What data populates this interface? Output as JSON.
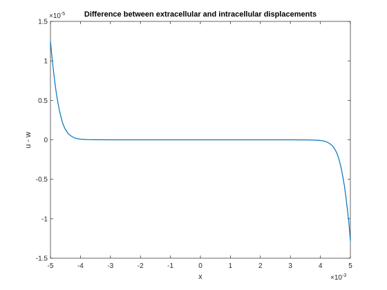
{
  "chart_data": {
    "type": "line",
    "title": "Difference between extracellular and intracellular displacements",
    "xlabel": "x",
    "ylabel": "u - w",
    "x_exponent_base": "×10",
    "x_exponent_power": "-3",
    "y_exponent_base": "×10",
    "y_exponent_power": "-5",
    "xlim": [
      -5,
      5
    ],
    "ylim": [
      -1.5,
      1.5
    ],
    "x_ticks": [
      -5,
      -4,
      -3,
      -2,
      -1,
      0,
      1,
      2,
      3,
      4,
      5
    ],
    "x_tick_labels": [
      "-5",
      "-4",
      "-3",
      "-2",
      "-1",
      "0",
      "1",
      "2",
      "3",
      "4",
      "5"
    ],
    "y_ticks": [
      -1.5,
      -1,
      -0.5,
      0,
      0.5,
      1,
      1.5
    ],
    "y_tick_labels": [
      "-1.5",
      "-1",
      "-0.5",
      "0",
      "0.5",
      "1",
      "1.5"
    ],
    "grid": false,
    "line_color": "#0072BD",
    "series": [
      {
        "x": [
          -5.0,
          -4.95,
          -4.9,
          -4.85,
          -4.8,
          -4.75,
          -4.7,
          -4.65,
          -4.6,
          -4.55,
          -4.5,
          -4.4,
          -4.3,
          -4.2,
          -4.1,
          -4.0,
          -3.8,
          -3.5,
          -3.0,
          -2.5,
          -2.0,
          -1.0,
          0.0,
          1.0,
          2.0,
          2.5,
          3.0,
          3.5,
          3.8,
          4.0,
          4.1,
          4.2,
          4.3,
          4.4,
          4.5,
          4.55,
          4.6,
          4.65,
          4.7,
          4.75,
          4.8,
          4.85,
          4.9,
          4.95,
          5.0
        ],
        "y": [
          1.25,
          1.05,
          0.88,
          0.72,
          0.58,
          0.47,
          0.37,
          0.29,
          0.22,
          0.17,
          0.13,
          0.075,
          0.045,
          0.025,
          0.014,
          0.008,
          0.003,
          0.001,
          0.0,
          0.0,
          0.0,
          0.0,
          0.0,
          0.0,
          0.0,
          0.0,
          0.0,
          -0.001,
          -0.003,
          -0.008,
          -0.014,
          -0.025,
          -0.045,
          -0.075,
          -0.13,
          -0.17,
          -0.22,
          -0.29,
          -0.37,
          -0.47,
          -0.58,
          -0.72,
          -0.88,
          -1.05,
          -1.28
        ]
      }
    ]
  }
}
